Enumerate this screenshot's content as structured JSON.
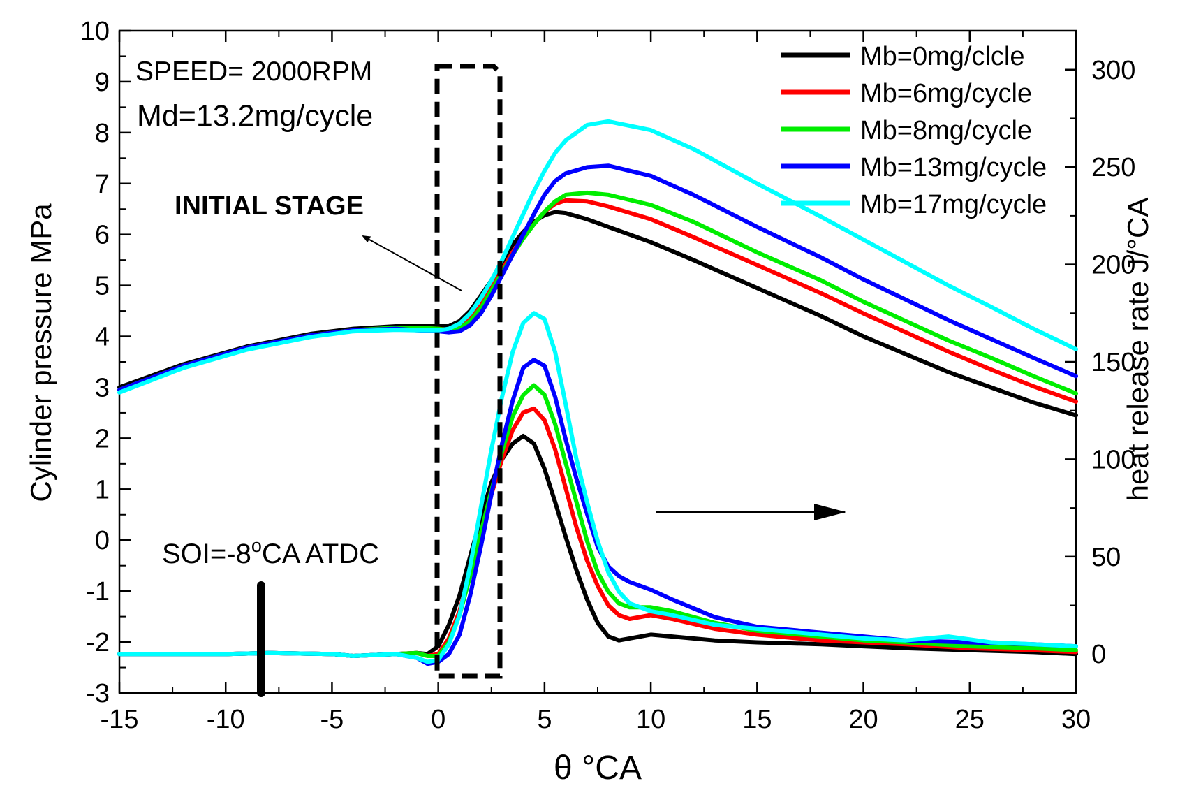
{
  "chart_data": {
    "type": "line",
    "title": "",
    "xlabel": "θ  °CA",
    "ylabel": "Cylinder pressure   MPa",
    "ylabel2": "heat release rate  J/°CA",
    "xlim": [
      -15,
      30
    ],
    "ylim": [
      -3,
      10
    ],
    "ylim2": [
      -20,
      320
    ],
    "xticks": [
      "-15",
      "-10",
      "-5",
      "0",
      "5",
      "10",
      "15",
      "20",
      "25",
      "30"
    ],
    "yticks": [
      "-3",
      "-2",
      "-1",
      "0",
      "1",
      "2",
      "3",
      "4",
      "5",
      "6",
      "7",
      "8",
      "9",
      "10"
    ],
    "yticks2": [
      "0",
      "50",
      "100",
      "150",
      "200",
      "250",
      "300"
    ],
    "legend_position": "top-right",
    "annotations": {
      "speed": "SPEED= 2000RPM",
      "md": "Md=13.2mg/cycle",
      "initial_stage": "INITIAL STAGE",
      "soi": "SOI=-8°CA ATDC"
    },
    "series": [
      {
        "name": "Mb=0mg/clcle",
        "color": "#000000",
        "pressure": {
          "x": [
            -15,
            -12,
            -9,
            -6,
            -4,
            -2,
            -1,
            0,
            0.5,
            1,
            1.5,
            2,
            2.5,
            3,
            3.5,
            4,
            4.5,
            5,
            5.5,
            6,
            7,
            8,
            10,
            12,
            15,
            18,
            20,
            22,
            24,
            26,
            28,
            30
          ],
          "y": [
            3.0,
            3.45,
            3.8,
            4.05,
            4.15,
            4.2,
            4.2,
            4.2,
            4.2,
            4.3,
            4.5,
            4.8,
            5.1,
            5.45,
            5.8,
            6.05,
            6.25,
            6.38,
            6.44,
            6.42,
            6.3,
            6.15,
            5.85,
            5.5,
            4.95,
            4.4,
            4.0,
            3.65,
            3.3,
            3.0,
            2.7,
            2.45
          ]
        },
        "hrr": {
          "x": [
            -15,
            -12,
            -10,
            -8,
            -5,
            -4,
            -3,
            -2,
            -1,
            -0.5,
            0,
            0.5,
            1,
            1.5,
            2,
            2.5,
            3,
            3.5,
            4,
            4.5,
            5,
            5.5,
            6,
            6.5,
            7,
            7.5,
            8,
            8.5,
            9,
            10,
            11,
            13,
            15,
            18,
            20,
            22,
            25,
            28,
            30
          ],
          "y": [
            0,
            0,
            0,
            0.5,
            0,
            -1,
            -0.5,
            0,
            0.5,
            0,
            4,
            15,
            30,
            50,
            70,
            88,
            100,
            108,
            112,
            108,
            95,
            78,
            60,
            43,
            28,
            16,
            9,
            7,
            8,
            10,
            9,
            7,
            6,
            5,
            4,
            3,
            2,
            1,
            0
          ]
        }
      },
      {
        "name": "Mb=6mg/cycle",
        "color": "#ff0000",
        "pressure": {
          "x": [
            -15,
            -12,
            -9,
            -6,
            -4,
            -2,
            -1,
            0,
            0.5,
            1,
            1.5,
            2,
            2.5,
            3,
            3.5,
            4,
            4.5,
            5,
            5.5,
            6,
            7,
            8,
            10,
            12,
            15,
            18,
            20,
            22,
            24,
            26,
            28,
            30
          ],
          "y": [
            2.95,
            3.42,
            3.78,
            4.02,
            4.12,
            4.17,
            4.17,
            4.15,
            4.13,
            4.18,
            4.35,
            4.6,
            4.95,
            5.3,
            5.65,
            5.95,
            6.2,
            6.45,
            6.6,
            6.67,
            6.65,
            6.55,
            6.3,
            5.95,
            5.4,
            4.85,
            4.45,
            4.08,
            3.7,
            3.35,
            3.02,
            2.72
          ]
        },
        "hrr": {
          "x": [
            -15,
            -12,
            -10,
            -8,
            -5,
            -4,
            -3,
            -2,
            -1,
            -0.5,
            0,
            0.5,
            1,
            1.5,
            2,
            2.5,
            3,
            3.5,
            4,
            4.5,
            5,
            5.5,
            6,
            6.5,
            7,
            7.5,
            8,
            8.5,
            9,
            10,
            11,
            13,
            15,
            18,
            20,
            22,
            25,
            28,
            30
          ],
          "y": [
            0,
            0,
            0,
            0.5,
            0,
            -1,
            -0.5,
            0,
            0.5,
            -1,
            0,
            8,
            22,
            42,
            62,
            82,
            100,
            115,
            124,
            126,
            120,
            105,
            85,
            65,
            48,
            35,
            25,
            20,
            18,
            20,
            18,
            13,
            10,
            7,
            6,
            5,
            3,
            2,
            1
          ]
        }
      },
      {
        "name": "Mb=8mg/cycle",
        "color": "#00ee00",
        "pressure": {
          "x": [
            -15,
            -12,
            -9,
            -6,
            -4,
            -2,
            -1,
            0,
            0.5,
            1,
            1.5,
            2,
            2.5,
            3,
            3.5,
            4,
            4.5,
            5,
            5.5,
            6,
            7,
            8,
            10,
            12,
            15,
            18,
            20,
            22,
            24,
            26,
            28,
            30
          ],
          "y": [
            2.95,
            3.42,
            3.78,
            4.02,
            4.12,
            4.17,
            4.17,
            4.15,
            4.12,
            4.15,
            4.3,
            4.55,
            4.9,
            5.25,
            5.6,
            5.92,
            6.2,
            6.45,
            6.65,
            6.78,
            6.82,
            6.78,
            6.58,
            6.25,
            5.65,
            5.1,
            4.68,
            4.3,
            3.92,
            3.58,
            3.22,
            2.88
          ]
        },
        "hrr": {
          "x": [
            -15,
            -12,
            -10,
            -8,
            -5,
            -4,
            -3,
            -2,
            -1,
            -0.5,
            0,
            0.5,
            1,
            1.5,
            2,
            2.5,
            3,
            3.5,
            4,
            4.5,
            5,
            5.5,
            6,
            6.5,
            7,
            7.5,
            8,
            8.5,
            9,
            10,
            11,
            13,
            15,
            18,
            20,
            22,
            25,
            28,
            30
          ],
          "y": [
            0,
            0,
            0,
            0.5,
            0,
            -1,
            -0.5,
            0,
            0.5,
            -1,
            -1,
            6,
            20,
            40,
            62,
            84,
            104,
            122,
            133,
            138,
            133,
            118,
            98,
            78,
            58,
            42,
            32,
            26,
            24,
            24,
            22,
            16,
            12,
            9,
            7,
            6,
            4,
            3,
            2
          ]
        }
      },
      {
        "name": "Mb=13mg/cycle",
        "color": "#0000ff",
        "pressure": {
          "x": [
            -15,
            -12,
            -9,
            -6,
            -4,
            -2,
            -1,
            0,
            0.5,
            1,
            1.5,
            2,
            2.5,
            3,
            3.5,
            4,
            4.5,
            5,
            5.5,
            6,
            7,
            8,
            10,
            12,
            15,
            18,
            20,
            22,
            24,
            26,
            28,
            30
          ],
          "y": [
            2.95,
            3.42,
            3.78,
            4.02,
            4.12,
            4.15,
            4.12,
            4.1,
            4.08,
            4.1,
            4.22,
            4.45,
            4.8,
            5.2,
            5.6,
            6.0,
            6.4,
            6.78,
            7.05,
            7.2,
            7.32,
            7.35,
            7.15,
            6.78,
            6.15,
            5.55,
            5.12,
            4.72,
            4.32,
            3.95,
            3.58,
            3.22
          ]
        },
        "hrr": {
          "x": [
            -15,
            -12,
            -10,
            -8,
            -5,
            -4,
            -3,
            -2,
            -1,
            -0.5,
            0,
            0.5,
            1,
            1.5,
            2,
            2.5,
            3,
            3.5,
            4,
            4.5,
            5,
            5.5,
            6,
            6.5,
            7,
            7.5,
            8,
            8.5,
            9,
            10,
            11,
            13,
            15,
            18,
            20,
            22,
            25,
            28,
            30
          ],
          "y": [
            0,
            0,
            0,
            0.5,
            0,
            -1,
            -0.5,
            0,
            -2,
            -5,
            -4,
            0,
            10,
            30,
            55,
            82,
            108,
            130,
            147,
            151,
            148,
            132,
            110,
            90,
            72,
            55,
            45,
            40,
            37,
            33,
            28,
            19,
            14,
            11,
            9,
            7,
            6,
            5,
            4
          ]
        }
      },
      {
        "name": "Mb=17mg/cycle",
        "color": "#00ffff",
        "pressure": {
          "x": [
            -15,
            -12,
            -9,
            -6,
            -4,
            -2,
            -1,
            0,
            0.5,
            1,
            1.5,
            2,
            2.5,
            3,
            3.5,
            4,
            4.5,
            5,
            5.5,
            6,
            7,
            8,
            10,
            12,
            15,
            18,
            20,
            22,
            24,
            26,
            28,
            30
          ],
          "y": [
            2.9,
            3.38,
            3.74,
            3.99,
            4.1,
            4.13,
            4.12,
            4.12,
            4.15,
            4.25,
            4.45,
            4.75,
            5.1,
            5.5,
            5.95,
            6.4,
            6.85,
            7.25,
            7.6,
            7.85,
            8.15,
            8.22,
            8.05,
            7.68,
            7.0,
            6.35,
            5.9,
            5.45,
            5.0,
            4.58,
            4.15,
            3.75
          ]
        },
        "hrr": {
          "x": [
            -15,
            -12,
            -10,
            -8,
            -5,
            -4,
            -3,
            -2,
            -1,
            -0.5,
            0,
            0.5,
            1,
            1.5,
            2,
            2.5,
            3,
            3.5,
            4,
            4.5,
            5,
            5.5,
            6,
            6.5,
            7,
            7.5,
            8,
            8.5,
            9,
            10,
            11,
            13,
            15,
            18,
            20,
            22,
            24,
            26,
            28,
            30
          ],
          "y": [
            0,
            0,
            0,
            0.5,
            0,
            -1,
            -0.5,
            0,
            -2,
            -4,
            -3,
            5,
            20,
            45,
            75,
            105,
            132,
            155,
            170,
            175,
            172,
            155,
            128,
            100,
            78,
            58,
            42,
            32,
            26,
            22,
            20,
            15,
            13,
            10,
            8,
            7,
            9,
            6,
            5,
            4
          ]
        }
      }
    ]
  }
}
